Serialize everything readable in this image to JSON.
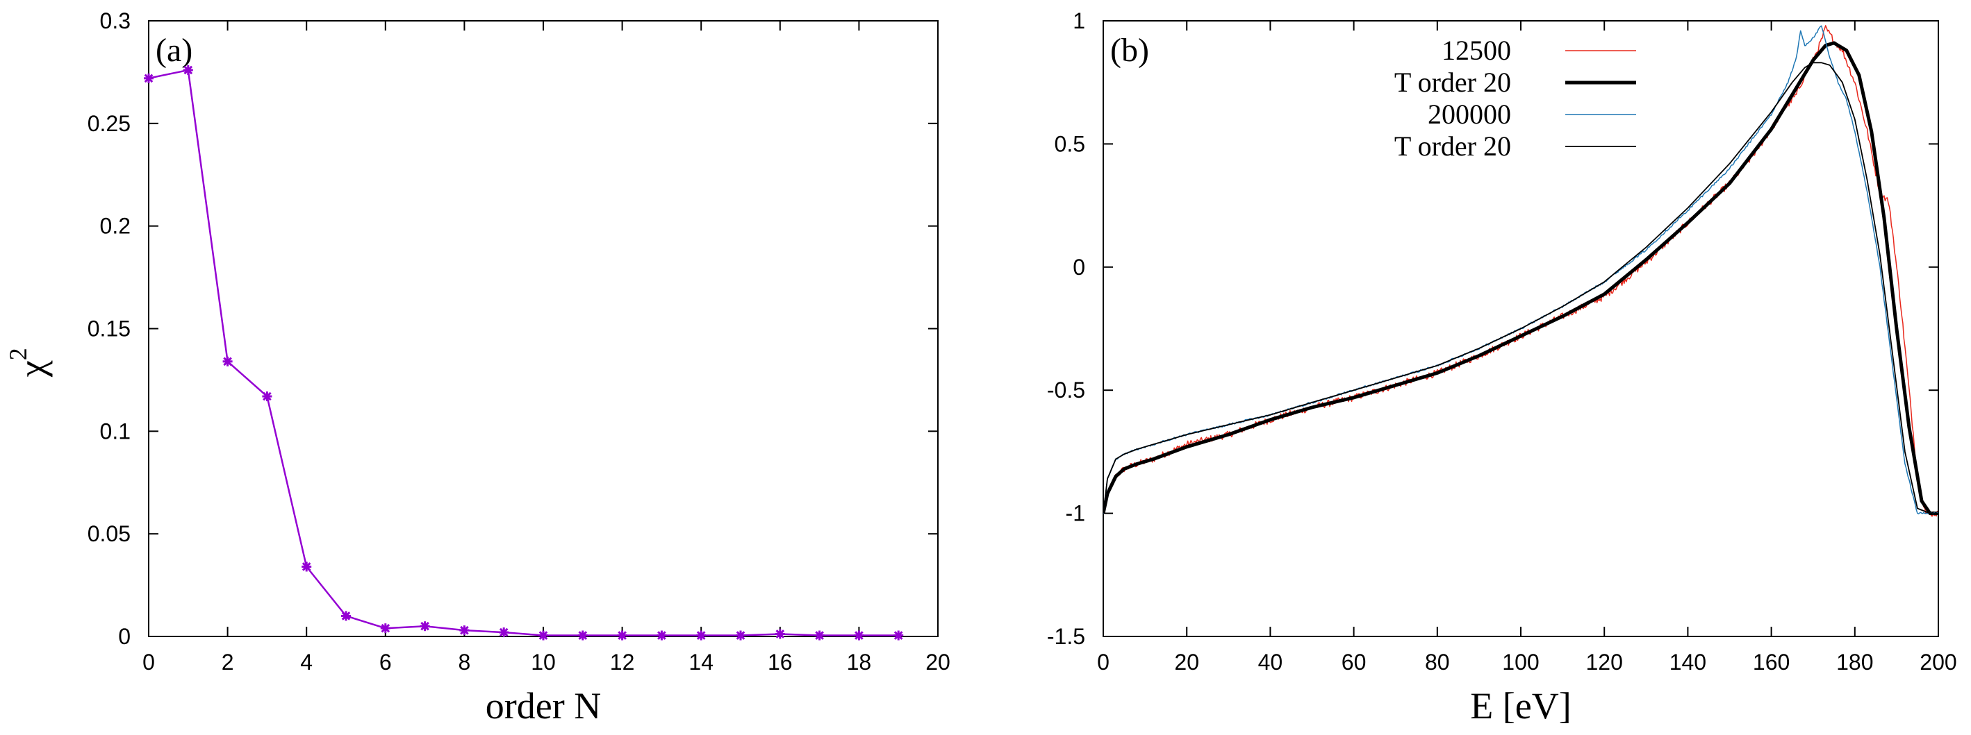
{
  "chart_data": [
    {
      "type": "line",
      "panel_label": "(a)",
      "xlabel": "order N",
      "ylabel": "χ",
      "ylabel_superscript": "2",
      "xlim": [
        0,
        20
      ],
      "ylim": [
        0,
        0.3
      ],
      "xticks": [
        "0",
        "2",
        "4",
        "6",
        "8",
        "10",
        "12",
        "14",
        "16",
        "18",
        "20"
      ],
      "yticks": [
        "0",
        "0.05",
        "0.1",
        "0.15",
        "0.2",
        "0.25",
        "0.3"
      ],
      "grid": false,
      "series": [
        {
          "color": "#9400d3",
          "marker": "star",
          "x": [
            0,
            1,
            2,
            3,
            4,
            5,
            6,
            7,
            8,
            9,
            10,
            11,
            12,
            13,
            14,
            15,
            16,
            17,
            18,
            19
          ],
          "values": [
            0.272,
            0.276,
            0.134,
            0.117,
            0.034,
            0.01,
            0.004,
            0.005,
            0.003,
            0.002,
            0.0005,
            0.0005,
            0.0005,
            0.0005,
            0.0005,
            0.0005,
            0.0012,
            0.0005,
            0.0005,
            0.0005
          ]
        }
      ]
    },
    {
      "type": "line",
      "panel_label": "(b)",
      "xlabel": "E [eV]",
      "ylabel": "",
      "xlim": [
        0,
        200
      ],
      "ylim": [
        -1.5,
        1
      ],
      "xticks": [
        "0",
        "20",
        "40",
        "60",
        "80",
        "100",
        "120",
        "140",
        "160",
        "180",
        "200"
      ],
      "yticks": [
        "-1.5",
        "-1",
        "-0.5",
        "0",
        "0.5",
        "1"
      ],
      "grid": false,
      "legend_position": "top-center",
      "series": [
        {
          "name": "12500",
          "color": "#e8281c",
          "width": 1.5,
          "noise": 0.014,
          "x": [
            0,
            1,
            3,
            5,
            8,
            12,
            20,
            30,
            40,
            50,
            60,
            70,
            80,
            90,
            100,
            110,
            120,
            130,
            140,
            150,
            155,
            160,
            163,
            166,
            168,
            170,
            172,
            173,
            175,
            177,
            180,
            183,
            186,
            188,
            189,
            191,
            193,
            195,
            197,
            200
          ],
          "values": [
            -1.0,
            -0.92,
            -0.85,
            -0.82,
            -0.8,
            -0.78,
            -0.72,
            -0.68,
            -0.62,
            -0.57,
            -0.53,
            -0.48,
            -0.43,
            -0.36,
            -0.28,
            -0.2,
            -0.12,
            0.02,
            0.18,
            0.34,
            0.44,
            0.56,
            0.64,
            0.7,
            0.78,
            0.84,
            0.92,
            0.97,
            0.92,
            0.88,
            0.75,
            0.55,
            0.3,
            0.27,
            0.15,
            -0.15,
            -0.5,
            -0.85,
            -1.0,
            -1.0
          ]
        },
        {
          "name": "T order 20",
          "color": "#000000",
          "width": 5,
          "noise": 0,
          "x": [
            0,
            1,
            3,
            5,
            8,
            12,
            20,
            30,
            40,
            50,
            60,
            70,
            80,
            90,
            100,
            110,
            120,
            130,
            140,
            150,
            160,
            165,
            170,
            173,
            175,
            178,
            181,
            184,
            187,
            190,
            193,
            196,
            198,
            200
          ],
          "values": [
            -1.0,
            -0.92,
            -0.85,
            -0.82,
            -0.8,
            -0.78,
            -0.73,
            -0.68,
            -0.62,
            -0.57,
            -0.53,
            -0.48,
            -0.43,
            -0.36,
            -0.28,
            -0.2,
            -0.11,
            0.03,
            0.18,
            0.34,
            0.56,
            0.7,
            0.84,
            0.9,
            0.91,
            0.88,
            0.78,
            0.55,
            0.2,
            -0.25,
            -0.65,
            -0.95,
            -1.0,
            -1.0
          ]
        },
        {
          "name": "200000",
          "color": "#1f77b4",
          "width": 1.5,
          "noise": 0.004,
          "x": [
            0,
            1,
            3,
            5,
            8,
            12,
            20,
            30,
            40,
            50,
            60,
            70,
            80,
            90,
            100,
            110,
            120,
            130,
            140,
            150,
            160,
            164,
            166,
            167,
            168,
            170,
            172,
            174,
            176,
            178,
            180,
            183,
            186,
            189,
            192,
            195,
            198,
            200
          ],
          "values": [
            -1.0,
            -0.86,
            -0.78,
            -0.76,
            -0.74,
            -0.72,
            -0.68,
            -0.64,
            -0.6,
            -0.55,
            -0.5,
            -0.45,
            -0.4,
            -0.33,
            -0.25,
            -0.16,
            -0.06,
            0.07,
            0.23,
            0.4,
            0.62,
            0.75,
            0.85,
            0.96,
            0.9,
            0.93,
            0.98,
            0.85,
            0.75,
            0.68,
            0.55,
            0.3,
            0.0,
            -0.4,
            -0.8,
            -1.0,
            -1.0,
            -1.0
          ]
        },
        {
          "name": "T order 20",
          "color": "#000000",
          "width": 1.8,
          "noise": 0,
          "x": [
            0,
            1,
            3,
            5,
            8,
            12,
            20,
            30,
            40,
            50,
            60,
            70,
            80,
            90,
            100,
            110,
            120,
            130,
            140,
            150,
            160,
            165,
            168,
            170,
            172,
            174,
            177,
            180,
            183,
            186,
            189,
            192,
            195,
            198,
            200
          ],
          "values": [
            -1.0,
            -0.86,
            -0.78,
            -0.76,
            -0.74,
            -0.72,
            -0.68,
            -0.64,
            -0.6,
            -0.55,
            -0.5,
            -0.45,
            -0.4,
            -0.33,
            -0.25,
            -0.16,
            -0.06,
            0.08,
            0.24,
            0.42,
            0.63,
            0.75,
            0.81,
            0.83,
            0.83,
            0.82,
            0.75,
            0.6,
            0.35,
            0.05,
            -0.35,
            -0.75,
            -0.98,
            -1.0,
            -1.0
          ]
        }
      ]
    }
  ]
}
